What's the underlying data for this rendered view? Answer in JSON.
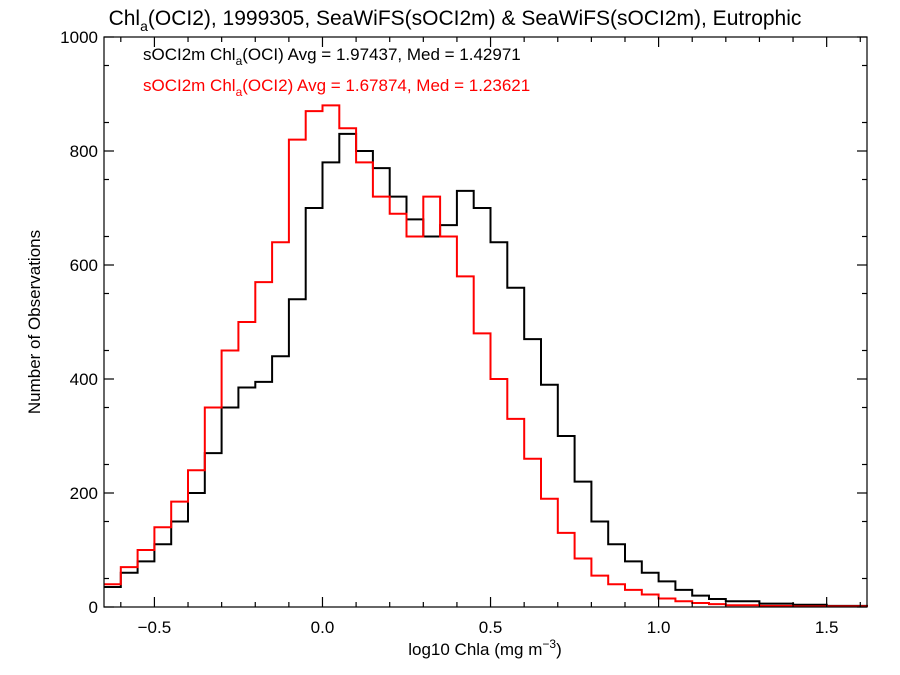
{
  "chart_data": {
    "type": "line",
    "title": {
      "pre": "Chl",
      "sub": "a",
      "post": "(OCI2), 1999305, SeaWiFS(sOCI2m) & SeaWiFS(sOCI2m), Eutrophic"
    },
    "xlabel": {
      "pre": "log10 Chla (mg m",
      "sup": "−3",
      "post": ")"
    },
    "ylabel": "Number of Observations",
    "xlim": [
      -0.65,
      1.62
    ],
    "ylim": [
      0,
      1000
    ],
    "xticks": [
      -0.5,
      0.0,
      0.5,
      1.0,
      1.5
    ],
    "xtick_labels": [
      "−0.5",
      "0.0",
      "0.5",
      "1.0",
      "1.5"
    ],
    "yticks": [
      0,
      200,
      400,
      600,
      800,
      1000
    ],
    "ytick_labels": [
      "0",
      "200",
      "400",
      "600",
      "800",
      "1000"
    ],
    "grid": false,
    "legend_position": "top-left",
    "series": [
      {
        "color": "#000000",
        "legend": {
          "pre": "sOCI2m Chl",
          "sub": "a",
          "post": "(OCI) Avg = 1.97437, Med = 1.42971"
        },
        "x": [
          -0.65,
          -0.6,
          -0.55,
          -0.5,
          -0.45,
          -0.4,
          -0.35,
          -0.3,
          -0.25,
          -0.2,
          -0.15,
          -0.1,
          -0.05,
          0.0,
          0.05,
          0.1,
          0.15,
          0.2,
          0.25,
          0.3,
          0.35,
          0.4,
          0.45,
          0.5,
          0.55,
          0.6,
          0.65,
          0.7,
          0.75,
          0.8,
          0.85,
          0.9,
          0.95,
          1.0,
          1.05,
          1.1,
          1.15,
          1.2,
          1.3,
          1.4,
          1.5,
          1.62
        ],
        "y": [
          35,
          60,
          80,
          110,
          150,
          200,
          270,
          350,
          385,
          395,
          440,
          540,
          700,
          780,
          830,
          800,
          770,
          720,
          680,
          650,
          670,
          730,
          700,
          640,
          560,
          470,
          390,
          300,
          220,
          150,
          110,
          80,
          60,
          45,
          30,
          20,
          14,
          10,
          6,
          4,
          2,
          1
        ]
      },
      {
        "color": "#ff0000",
        "legend": {
          "pre": "sOCI2m Chl",
          "sub": "a",
          "post": "(OCI2) Avg = 1.67874, Med = 1.23621"
        },
        "x": [
          -0.65,
          -0.6,
          -0.55,
          -0.5,
          -0.45,
          -0.4,
          -0.35,
          -0.3,
          -0.25,
          -0.2,
          -0.15,
          -0.1,
          -0.05,
          0.0,
          0.05,
          0.1,
          0.15,
          0.2,
          0.25,
          0.3,
          0.35,
          0.4,
          0.45,
          0.5,
          0.55,
          0.6,
          0.65,
          0.7,
          0.75,
          0.8,
          0.85,
          0.9,
          0.95,
          1.0,
          1.05,
          1.1,
          1.15,
          1.2,
          1.3,
          1.4,
          1.5,
          1.62
        ],
        "y": [
          40,
          70,
          100,
          140,
          185,
          240,
          350,
          450,
          500,
          570,
          640,
          820,
          870,
          880,
          840,
          780,
          720,
          690,
          650,
          720,
          650,
          580,
          480,
          400,
          330,
          260,
          190,
          130,
          85,
          55,
          40,
          30,
          22,
          15,
          10,
          7,
          5,
          3,
          2,
          1,
          1,
          0
        ]
      }
    ]
  }
}
